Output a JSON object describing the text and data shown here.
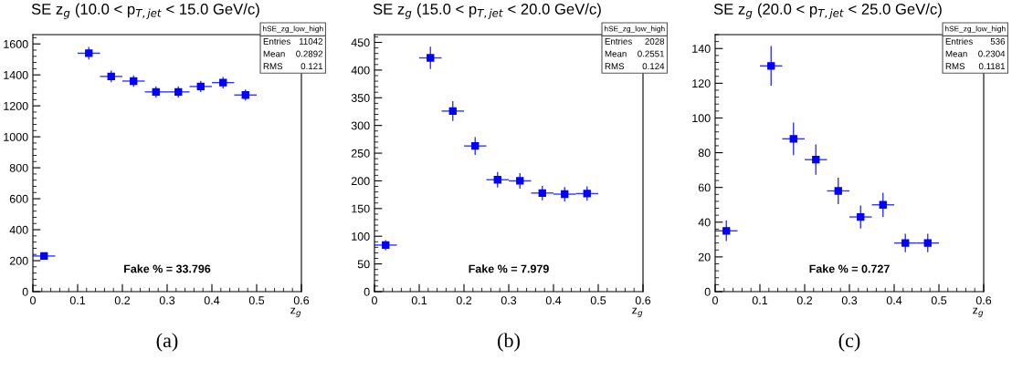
{
  "chart_data": [
    {
      "type": "scatter",
      "title": "SE z$_{g}$ (10.0 < p$_{T,jet}$ < 15.0 GeV/c)",
      "xlabel": "z$_{g}$",
      "x": [
        0.025,
        0.075,
        0.125,
        0.175,
        0.225,
        0.275,
        0.325,
        0.375,
        0.425,
        0.475
      ],
      "series": [
        {
          "color": "#0000ff",
          "values": [
            230,
            null,
            1540,
            1390,
            1360,
            1290,
            1290,
            1325,
            1350,
            1270
          ],
          "errors": [
            15,
            null,
            40,
            37,
            37,
            36,
            36,
            36,
            37,
            36
          ],
          "xerrors": [
            0.025,
            null,
            0.025,
            0.025,
            0.025,
            0.025,
            0.025,
            0.025,
            0.025,
            0.025
          ]
        }
      ],
      "xlim": [
        0,
        0.6
      ],
      "xticks": [
        0,
        0.1,
        0.2,
        0.3,
        0.4,
        0.5,
        0.6
      ],
      "ylim": [
        0,
        1660
      ],
      "yticks": [
        0,
        200,
        400,
        600,
        800,
        1000,
        1200,
        1400,
        1600
      ],
      "marker": "square",
      "grid": false,
      "legend": false,
      "annotations": [
        "Fake % = 33.796",
        "hSE_zg_low_high",
        "Entries",
        "11042",
        "Mean",
        "0.2892",
        "RMS",
        "0.121",
        "(a)"
      ]
    },
    {
      "type": "scatter",
      "title": "SE z$_{g}$ (15.0 < p$_{T,jet}$ < 20.0 GeV/c)",
      "xlabel": "z$_{g}$",
      "x": [
        0.025,
        0.075,
        0.125,
        0.175,
        0.225,
        0.275,
        0.325,
        0.375,
        0.425,
        0.475
      ],
      "series": [
        {
          "color": "#0000ff",
          "values": [
            84,
            null,
            422,
            326,
            263,
            202,
            200,
            178,
            176,
            177
          ],
          "errors": [
            9,
            null,
            20,
            18,
            16,
            14,
            14,
            13,
            13,
            13
          ],
          "xerrors": [
            0.025,
            null,
            0.025,
            0.025,
            0.025,
            0.025,
            0.025,
            0.025,
            0.025,
            0.025
          ]
        }
      ],
      "xlim": [
        0,
        0.6
      ],
      "xticks": [
        0,
        0.1,
        0.2,
        0.3,
        0.4,
        0.5,
        0.6
      ],
      "ylim": [
        0,
        464
      ],
      "yticks": [
        0,
        50,
        100,
        150,
        200,
        250,
        300,
        350,
        400,
        450
      ],
      "marker": "square",
      "grid": false,
      "legend": false,
      "annotations": [
        "Fake % = 7.979",
        "hSE_zg_low_high",
        "Entries",
        "2028",
        "Mean",
        "0.2551",
        "RMS",
        "0.124",
        "(b)"
      ]
    },
    {
      "type": "scatter",
      "title": "SE z$_{g}$ (20.0 < p$_{T,jet}$ < 25.0 GeV/c)",
      "xlabel": "z$_{g}$",
      "x": [
        0.025,
        0.075,
        0.125,
        0.175,
        0.225,
        0.275,
        0.325,
        0.375,
        0.425,
        0.475
      ],
      "series": [
        {
          "color": "#0000ff",
          "values": [
            35,
            null,
            130,
            88,
            76,
            58,
            43,
            50,
            28,
            28
          ],
          "errors": [
            5.9,
            null,
            11.4,
            9.4,
            8.7,
            7.6,
            6.6,
            7,
            5.3,
            5.3
          ],
          "xerrors": [
            0.025,
            null,
            0.025,
            0.025,
            0.025,
            0.025,
            0.025,
            0.025,
            0.025,
            0.025
          ]
        }
      ],
      "xlim": [
        0,
        0.6
      ],
      "xticks": [
        0,
        0.1,
        0.2,
        0.3,
        0.4,
        0.5,
        0.6
      ],
      "ylim": [
        0,
        148
      ],
      "yticks": [
        0,
        20,
        40,
        60,
        80,
        100,
        120,
        140
      ],
      "marker": "square",
      "grid": false,
      "legend": false,
      "annotations": [
        "Fake % = 0.727",
        "hSE_zg_low_high",
        "Entries",
        "536",
        "Mean",
        "0.2304",
        "RMS",
        "0.1181",
        "(c)"
      ]
    }
  ]
}
